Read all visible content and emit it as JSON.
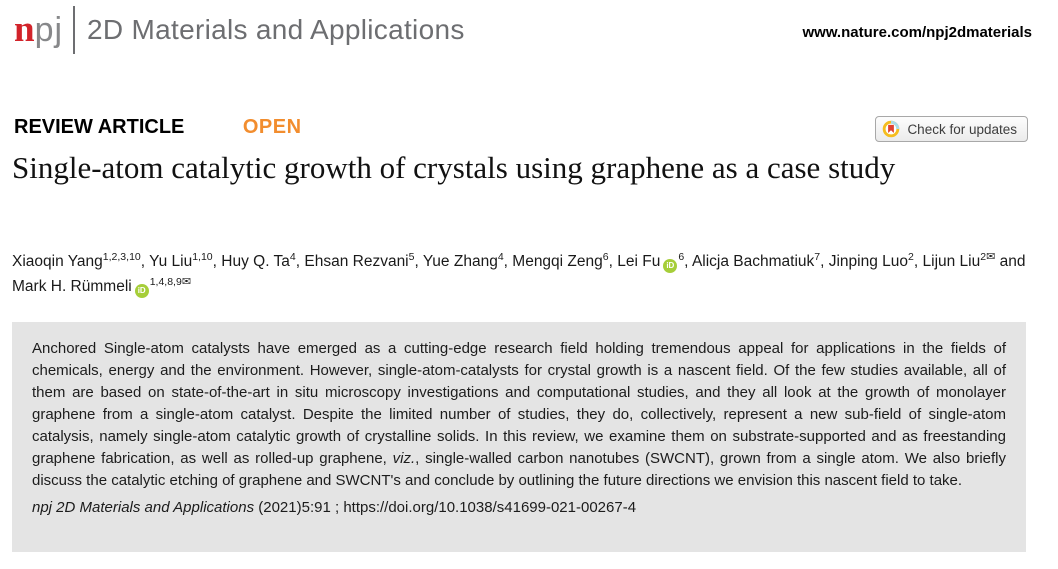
{
  "masthead": {
    "logo": {
      "prefix": "n",
      "suffix": "pj"
    },
    "journal": "2D Materials and Applications",
    "website": "www.nature.com/npj2dmaterials"
  },
  "article": {
    "type_label": "REVIEW ARTICLE",
    "access_label": "OPEN",
    "check_updates_label": "Check for updates",
    "title": "Single-atom catalytic growth of crystals using graphene as a case study"
  },
  "authors": {
    "email_symbol": "✉",
    "orcid_label": "iD",
    "list": [
      {
        "name": "Xiaoqin Yang",
        "sup": "1,2,3,10",
        "sep": ", "
      },
      {
        "name": "Yu Liu",
        "sup": "1,10",
        "sep": ", "
      },
      {
        "name": "Huy Q. Ta",
        "sup": "4",
        "sep": ", "
      },
      {
        "name": "Ehsan Rezvani",
        "sup": "5",
        "sep": ", "
      },
      {
        "name": "Yue Zhang",
        "sup": "4",
        "sep": ", "
      },
      {
        "name": "Mengqi Zeng",
        "sup": "6",
        "sep": ", "
      },
      {
        "name": "Lei Fu",
        "orcid": true,
        "sup": "6",
        "sep": ", "
      },
      {
        "name": "Alicja Bachmatiuk",
        "sup": "7",
        "sep": ", "
      },
      {
        "name": "Jinping Luo",
        "sup": "2",
        "sep": ", "
      },
      {
        "name": "Lijun Liu",
        "sup": "2",
        "email": true,
        "sep": " and "
      },
      {
        "name": "Mark H. Rümmeli",
        "orcid": true,
        "sup": "1,4,8,9",
        "email": true,
        "sep": ""
      }
    ]
  },
  "abstract": {
    "segments": [
      {
        "text": "Anchored Single-atom catalysts have emerged as a cutting-edge research field holding tremendous appeal for applications in the fields of chemicals, energy and the environment. However, single-atom-catalysts for crystal growth is a nascent field. Of the few studies available, all of them are based on state-of-the-art in situ microscopy investigations and computational studies, and they all look at the growth of monolayer graphene from a single-atom catalyst. Despite the limited number of studies, they do, collectively, represent a new sub-field of single-atom catalysis, namely single-atom catalytic growth of crystalline solids. In this review, we examine them on substrate-supported and as freestanding graphene fabrication, as well as rolled-up graphene, "
      },
      {
        "text": "viz.",
        "italic": true
      },
      {
        "text": ", single-walled carbon nanotubes (SWCNT), grown from a single atom. We also briefly discuss the catalytic etching of graphene and SWCNT's and conclude by outlining the future directions we envision this nascent field to take."
      }
    ]
  },
  "citation": {
    "segments": [
      {
        "text": "npj 2D Materials and Applications",
        "italic": true
      },
      {
        "text": " (2021)5:91 ; "
      },
      {
        "text": "https://doi.org/10.1038/s41699-021-00267-4",
        "link": true
      }
    ]
  },
  "colors": {
    "npj_red": "#d2232a",
    "open_orange": "#f28d2e",
    "orcid_green": "#a6ce39",
    "crossmark_yellow": "#f5bd1f",
    "crossmark_red": "#e0412f",
    "abstract_bg": "#e4e4e4",
    "logo_gray": "#6d6e71"
  }
}
